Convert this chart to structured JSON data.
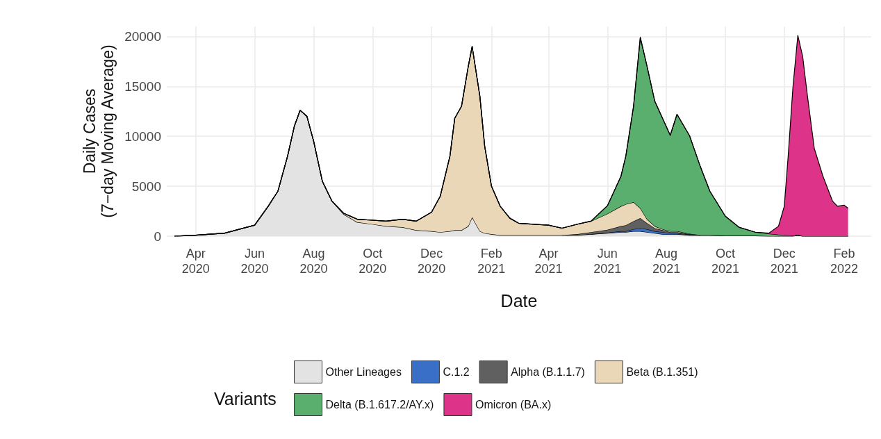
{
  "chart_data": {
    "type": "area",
    "stacked": true,
    "xlabel": "Date",
    "ylabel": "Daily Cases\n(7−day Moving Average)",
    "legend_title": "Variants",
    "legend": "bottom",
    "grid": true,
    "xlim": [
      "2020-03-02",
      "2022-03-01"
    ],
    "xticks": [
      {
        "value": "2020-04-01",
        "label": "Apr\n2020"
      },
      {
        "value": "2020-06-01",
        "label": "Jun\n2020"
      },
      {
        "value": "2020-08-01",
        "label": "Aug\n2020"
      },
      {
        "value": "2020-10-01",
        "label": "Oct\n2020"
      },
      {
        "value": "2020-12-01",
        "label": "Dec\n2020"
      },
      {
        "value": "2021-02-01",
        "label": "Feb\n2021"
      },
      {
        "value": "2021-04-01",
        "label": "Apr\n2021"
      },
      {
        "value": "2021-06-01",
        "label": "Jun\n2021"
      },
      {
        "value": "2021-08-01",
        "label": "Aug\n2021"
      },
      {
        "value": "2021-10-01",
        "label": "Oct\n2021"
      },
      {
        "value": "2021-12-01",
        "label": "Dec\n2021"
      },
      {
        "value": "2022-02-01",
        "label": "Feb\n2022"
      }
    ],
    "ylim": [
      0,
      21000
    ],
    "yticks": [
      0,
      5000,
      10000,
      15000,
      20000
    ],
    "x": [
      "2020-03-10",
      "2020-04-01",
      "2020-05-01",
      "2020-06-01",
      "2020-06-15",
      "2020-06-25",
      "2020-07-05",
      "2020-07-12",
      "2020-07-18",
      "2020-07-25",
      "2020-08-01",
      "2020-08-10",
      "2020-08-20",
      "2020-09-01",
      "2020-09-15",
      "2020-10-01",
      "2020-10-15",
      "2020-11-01",
      "2020-11-15",
      "2020-12-01",
      "2020-12-10",
      "2020-12-20",
      "2020-12-25",
      "2021-01-01",
      "2021-01-08",
      "2021-01-12",
      "2021-01-20",
      "2021-01-25",
      "2021-02-01",
      "2021-02-10",
      "2021-02-20",
      "2021-03-01",
      "2021-03-15",
      "2021-04-01",
      "2021-04-15",
      "2021-05-01",
      "2021-05-15",
      "2021-06-01",
      "2021-06-15",
      "2021-06-20",
      "2021-06-28",
      "2021-07-05",
      "2021-07-12",
      "2021-07-20",
      "2021-07-28",
      "2021-08-05",
      "2021-08-12",
      "2021-08-25",
      "2021-09-05",
      "2021-09-15",
      "2021-10-01",
      "2021-10-15",
      "2021-11-01",
      "2021-11-15",
      "2021-11-25",
      "2021-12-01",
      "2021-12-05",
      "2021-12-10",
      "2021-12-15",
      "2021-12-20",
      "2021-12-25",
      "2022-01-01",
      "2022-01-10",
      "2022-01-20",
      "2022-01-25",
      "2022-02-01",
      "2022-02-05"
    ],
    "series": [
      {
        "name": "Other Lineages",
        "color": "#e3e3e3",
        "values": [
          0,
          100,
          300,
          1100,
          3000,
          4500,
          8000,
          11000,
          12600,
          12000,
          9500,
          5500,
          3500,
          2200,
          1400,
          1200,
          1000,
          900,
          600,
          500,
          400,
          500,
          600,
          600,
          1000,
          1900,
          500,
          300,
          200,
          100,
          100,
          100,
          100,
          100,
          100,
          100,
          200,
          300,
          400,
          400,
          500,
          500,
          400,
          300,
          200,
          200,
          200,
          100,
          100,
          100,
          50,
          50,
          50,
          0,
          0,
          0,
          0,
          0,
          100,
          0,
          0,
          0,
          0,
          0,
          0,
          0,
          0
        ]
      },
      {
        "name": "C.1.2",
        "color": "#3a6fc8",
        "values": [
          null,
          null,
          null,
          null,
          null,
          null,
          null,
          null,
          null,
          null,
          null,
          null,
          null,
          null,
          null,
          null,
          null,
          null,
          null,
          null,
          null,
          null,
          null,
          null,
          null,
          null,
          null,
          null,
          null,
          null,
          null,
          null,
          null,
          null,
          null,
          null,
          0,
          50,
          100,
          100,
          200,
          300,
          300,
          200,
          200,
          100,
          100,
          50,
          0,
          null,
          null,
          null,
          null,
          null,
          null,
          null,
          null,
          null,
          null,
          null,
          null,
          null,
          null,
          null,
          null,
          null,
          null
        ]
      },
      {
        "name": "Alpha (B.1.1.7)",
        "color": "#606060",
        "values": [
          null,
          null,
          null,
          null,
          null,
          null,
          null,
          null,
          null,
          null,
          null,
          null,
          null,
          null,
          null,
          null,
          null,
          null,
          null,
          null,
          null,
          null,
          null,
          null,
          null,
          null,
          null,
          null,
          null,
          null,
          null,
          null,
          null,
          null,
          0,
          100,
          200,
          300,
          500,
          600,
          800,
          1000,
          600,
          300,
          200,
          100,
          100,
          50,
          0,
          null,
          null,
          null,
          null,
          null,
          null,
          null,
          null,
          null,
          null,
          null,
          null,
          null,
          null,
          null,
          null,
          null,
          null
        ]
      },
      {
        "name": "Beta (B.1.351)",
        "color": "#ead7b8",
        "values": [
          0,
          0,
          0,
          0,
          0,
          0,
          0,
          0,
          0,
          0,
          0,
          0,
          0,
          100,
          300,
          400,
          500,
          800,
          900,
          1900,
          3600,
          7500,
          11200,
          12400,
          16000,
          17100,
          13500,
          8700,
          4800,
          2900,
          1700,
          1200,
          1100,
          1000,
          700,
          1000,
          1100,
          1600,
          2000,
          2100,
          1900,
          1000,
          400,
          200,
          100,
          100,
          100,
          50,
          0,
          0,
          0,
          0,
          0,
          0,
          0,
          0,
          0,
          0,
          0,
          0,
          0,
          0,
          0,
          0,
          0,
          0,
          0
        ]
      },
      {
        "name": "Delta (B.1.617.2/AY.x)",
        "color": "#5aae6e",
        "values": [
          0,
          0,
          0,
          0,
          0,
          0,
          0,
          0,
          0,
          0,
          0,
          0,
          0,
          0,
          0,
          0,
          0,
          0,
          0,
          0,
          0,
          0,
          0,
          0,
          0,
          0,
          0,
          0,
          0,
          0,
          0,
          0,
          0,
          0,
          0,
          0,
          0,
          800,
          3000,
          4800,
          9600,
          17100,
          15300,
          12500,
          11100,
          9600,
          11700,
          9800,
          6900,
          4400,
          1950,
          850,
          350,
          250,
          150,
          100,
          100,
          50,
          50,
          0,
          0,
          0,
          0,
          0,
          0,
          0,
          0
        ]
      },
      {
        "name": "Omicron (BA.x)",
        "color": "#dd3489",
        "values": [
          0,
          0,
          0,
          0,
          0,
          0,
          0,
          0,
          0,
          0,
          0,
          0,
          0,
          0,
          0,
          0,
          0,
          0,
          0,
          0,
          0,
          0,
          0,
          0,
          0,
          0,
          0,
          0,
          0,
          0,
          0,
          0,
          0,
          0,
          0,
          0,
          0,
          0,
          0,
          0,
          0,
          0,
          0,
          0,
          0,
          0,
          0,
          0,
          0,
          0,
          0,
          0,
          0,
          50,
          850,
          2900,
          7900,
          14950,
          19950,
          18000,
          14000,
          8800,
          6000,
          3500,
          3000,
          3100,
          2800
        ]
      }
    ]
  }
}
